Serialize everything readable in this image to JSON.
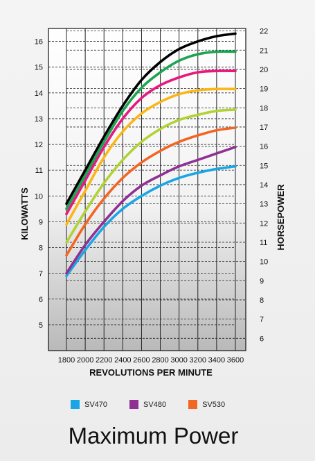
{
  "chart_data": {
    "type": "line",
    "title": "Maximum Power",
    "xlabel": "REVOLUTIONS PER MINUTE",
    "ylabel": "KILOWATTS",
    "y2label": "HORSEPOWER",
    "x": [
      1800,
      2000,
      2200,
      2400,
      2600,
      2800,
      3000,
      3200,
      3400,
      3600
    ],
    "x_ticks": [
      "1800",
      "2000",
      "2200",
      "2400",
      "2600",
      "2800",
      "3000",
      "3200",
      "3400",
      "3600"
    ],
    "xlim": [
      1800,
      3600
    ],
    "ylim": [
      4.0,
      16.5
    ],
    "y_ticks": [
      "5",
      "6",
      "7",
      "8",
      "9",
      "10",
      "11",
      "12",
      "13",
      "14",
      "15",
      "16"
    ],
    "y2lim": [
      5.36,
      22.13
    ],
    "y2_ticks": [
      "6",
      "7",
      "8",
      "9",
      "10",
      "11",
      "12",
      "13",
      "14",
      "15",
      "16",
      "17",
      "18",
      "19",
      "20",
      "21",
      "22"
    ],
    "grid": true,
    "series": [
      {
        "name": "SV470",
        "color": "#1aa6e4",
        "values": [
          6.9,
          7.9,
          8.8,
          9.5,
          10.0,
          10.4,
          10.7,
          10.9,
          11.05,
          11.15
        ]
      },
      {
        "name": "SV480",
        "color": "#8e3192",
        "values": [
          7.0,
          8.1,
          9.0,
          9.8,
          10.4,
          10.8,
          11.15,
          11.4,
          11.65,
          11.9
        ]
      },
      {
        "name": "SV530",
        "color": "#f26522",
        "values": [
          7.7,
          8.9,
          9.9,
          10.7,
          11.3,
          11.75,
          12.1,
          12.35,
          12.55,
          12.65
        ]
      },
      {
        "values": [
          8.2,
          9.4,
          10.5,
          11.4,
          12.1,
          12.6,
          12.95,
          13.15,
          13.3,
          13.35
        ],
        "color": "#b1d234"
      },
      {
        "values": [
          8.9,
          10.2,
          11.5,
          12.5,
          13.2,
          13.65,
          13.95,
          14.1,
          14.15,
          14.15
        ],
        "color": "#fbb615"
      },
      {
        "values": [
          9.3,
          10.6,
          11.9,
          13.0,
          13.8,
          14.3,
          14.6,
          14.8,
          14.85,
          14.85
        ],
        "color": "#e8197d"
      },
      {
        "values": [
          9.5,
          10.8,
          12.1,
          13.3,
          14.2,
          14.8,
          15.25,
          15.5,
          15.6,
          15.6
        ],
        "color": "#1aa551"
      },
      {
        "values": [
          9.7,
          11.0,
          12.3,
          13.5,
          14.5,
          15.2,
          15.7,
          16.0,
          16.2,
          16.3
        ],
        "color": "#000000"
      }
    ],
    "legend": [
      "SV470",
      "SV480",
      "SV530"
    ],
    "legend_position": "bottom"
  },
  "legend_items": [
    {
      "label": "SV470",
      "color": "#1aa6e4"
    },
    {
      "label": "SV480",
      "color": "#8e3192"
    },
    {
      "label": "SV530",
      "color": "#f26522"
    }
  ]
}
